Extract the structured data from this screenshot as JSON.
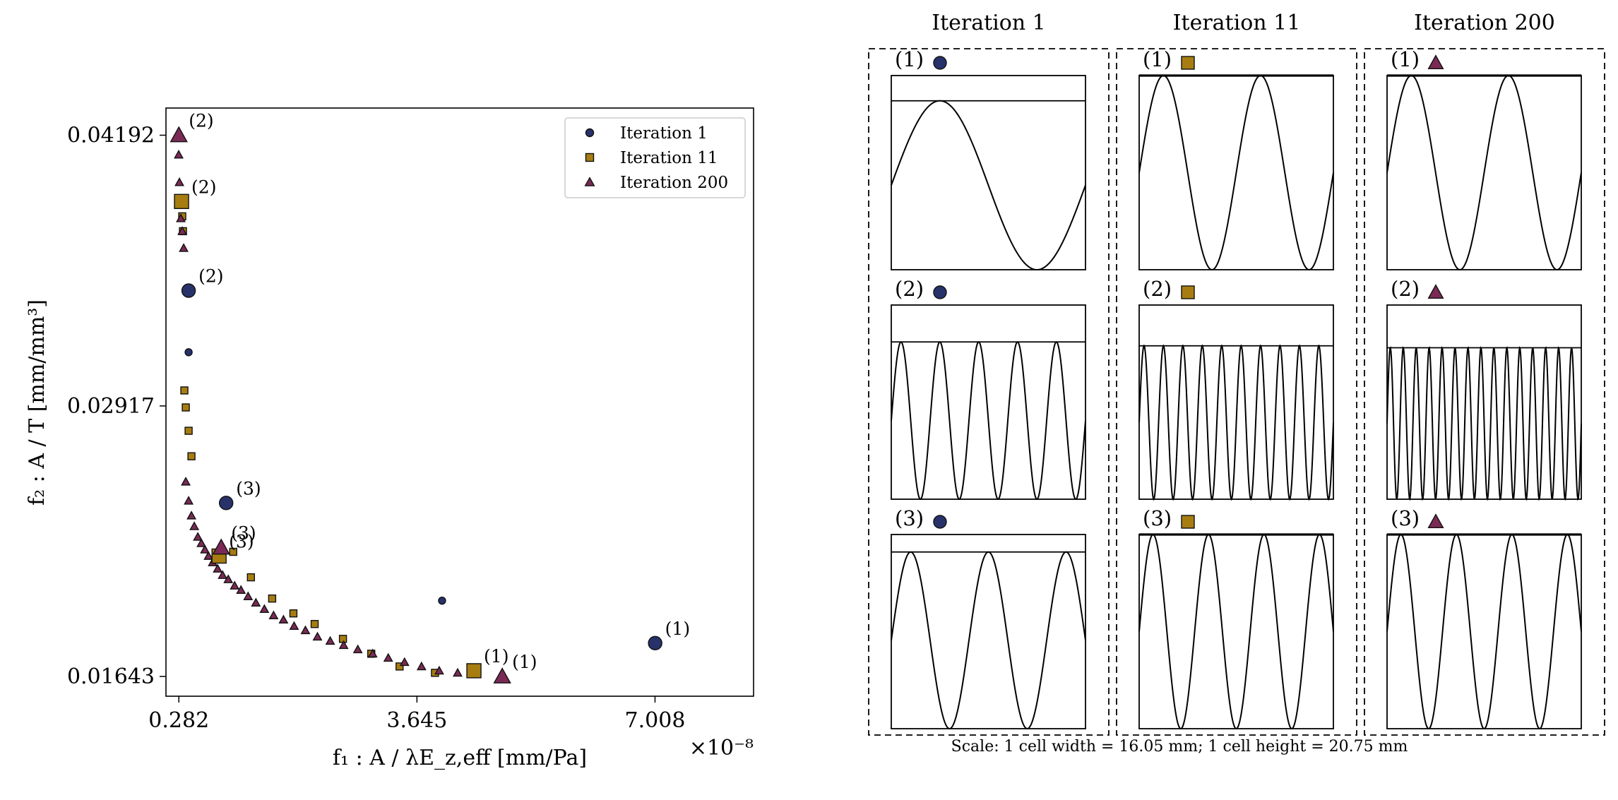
{
  "chart_data": [
    {
      "type": "scatter",
      "title": "",
      "xlabel": "f₁ : A / λE_z,eff [mm/Pa]",
      "ylabel": "f₂ : A / T [mm/mm³]",
      "x_multiplier_label": "×10⁻⁸",
      "x_ticks": [
        "0.282",
        "3.645",
        "7.008"
      ],
      "y_ticks": [
        "0.01643",
        "0.02917",
        "0.04192"
      ],
      "xlim": [
        0.1,
        8.4
      ],
      "ylim": [
        0.0155,
        0.0432
      ],
      "grid": false,
      "legend_position": "top-right",
      "series": [
        {
          "name": "Iteration 1",
          "marker": "circle",
          "color": "#27326b",
          "points": [
            [
              0.42,
              0.0317
            ],
            [
              4.0,
              0.02
            ]
          ],
          "highlighted": [
            {
              "label": "(2)",
              "x": 0.42,
              "y": 0.0346
            },
            {
              "label": "(3)",
              "x": 0.95,
              "y": 0.0246
            },
            {
              "label": "(1)",
              "x": 7.01,
              "y": 0.018
            }
          ]
        },
        {
          "name": "Iteration 11",
          "marker": "square",
          "color": "#a77d12",
          "points": [
            [
              0.33,
              0.0381
            ],
            [
              0.34,
              0.0374
            ],
            [
              0.36,
              0.0299
            ],
            [
              0.38,
              0.0291
            ],
            [
              0.42,
              0.028
            ],
            [
              0.46,
              0.0268
            ],
            [
              1.05,
              0.0223
            ],
            [
              1.3,
              0.0211
            ],
            [
              1.6,
              0.0201
            ],
            [
              1.9,
              0.0194
            ],
            [
              2.2,
              0.0189
            ],
            [
              2.6,
              0.0182
            ],
            [
              3.0,
              0.0175
            ],
            [
              3.4,
              0.0169
            ],
            [
              3.9,
              0.0166
            ]
          ],
          "highlighted": [
            {
              "label": "(2)",
              "x": 0.32,
              "y": 0.0388
            },
            {
              "label": "(3)",
              "x": 0.85,
              "y": 0.0221
            },
            {
              "label": "(1)",
              "x": 4.45,
              "y": 0.0167
            }
          ]
        },
        {
          "name": "Iteration 200",
          "marker": "triangle",
          "color": "#7a2a55",
          "points": [
            [
              0.28,
              0.041
            ],
            [
              0.29,
              0.0397
            ],
            [
              0.3,
              0.0387
            ],
            [
              0.31,
              0.038
            ],
            [
              0.33,
              0.0374
            ],
            [
              0.35,
              0.0366
            ],
            [
              0.38,
              0.0256
            ],
            [
              0.42,
              0.0247
            ],
            [
              0.46,
              0.024
            ],
            [
              0.5,
              0.0235
            ],
            [
              0.55,
              0.023
            ],
            [
              0.6,
              0.0227
            ],
            [
              0.65,
              0.0224
            ],
            [
              0.7,
              0.0221
            ],
            [
              0.76,
              0.0218
            ],
            [
              0.83,
              0.0215
            ],
            [
              0.9,
              0.0212
            ],
            [
              0.98,
              0.021
            ],
            [
              1.07,
              0.0207
            ],
            [
              1.16,
              0.0205
            ],
            [
              1.26,
              0.0202
            ],
            [
              1.37,
              0.0199
            ],
            [
              1.49,
              0.0196
            ],
            [
              1.62,
              0.0193
            ],
            [
              1.76,
              0.0191
            ],
            [
              1.91,
              0.0188
            ],
            [
              2.07,
              0.0186
            ],
            [
              2.24,
              0.0183
            ],
            [
              2.42,
              0.0181
            ],
            [
              2.61,
              0.0179
            ],
            [
              2.81,
              0.0177
            ],
            [
              3.02,
              0.0175
            ],
            [
              3.24,
              0.0173
            ],
            [
              3.47,
              0.0171
            ],
            [
              3.71,
              0.0169
            ],
            [
              3.96,
              0.0167
            ],
            [
              4.22,
              0.0166
            ]
          ],
          "highlighted": [
            {
              "label": "(2)",
              "x": 0.282,
              "y": 0.04192
            },
            {
              "label": "(3)",
              "x": 0.88,
              "y": 0.0225
            },
            {
              "label": "(1)",
              "x": 4.85,
              "y": 0.01643
            }
          ]
        }
      ]
    },
    {
      "type": "table",
      "columns": [
        {
          "title": "Iteration 1",
          "marker": "circle",
          "color": "#27326b",
          "cells": [
            {
              "label": "(1)",
              "band": 0.13,
              "cycles": 1.0,
              "phase": 0.0
            },
            {
              "label": "(2)",
              "band": 0.19,
              "cycles": 5.0,
              "phase": 0.0
            },
            {
              "label": "(3)",
              "band": 0.09,
              "cycles": 2.5,
              "phase": 0.0
            }
          ]
        },
        {
          "title": "Iteration 11",
          "marker": "square",
          "color": "#a77d12",
          "cells": [
            {
              "label": "(1)",
              "band": 0.0,
              "cycles": 2.0,
              "phase": 0.0
            },
            {
              "label": "(2)",
              "band": 0.21,
              "cycles": 10.0,
              "phase": 0.0
            },
            {
              "label": "(3)",
              "band": 0.0,
              "cycles": 3.5,
              "phase": 0.0
            }
          ]
        },
        {
          "title": "Iteration 200",
          "marker": "triangle",
          "color": "#7a2a55",
          "cells": [
            {
              "label": "(1)",
              "band": 0.0,
              "cycles": 2.0,
              "phase": 0.0
            },
            {
              "label": "(2)",
              "band": 0.22,
              "cycles": 15.0,
              "phase": 0.0
            },
            {
              "label": "(3)",
              "band": 0.0,
              "cycles": 3.5,
              "phase": 0.0
            }
          ]
        }
      ],
      "scale_note": "Scale: 1 cell width = 16.05 mm; 1 cell height = 20.75 mm"
    }
  ]
}
